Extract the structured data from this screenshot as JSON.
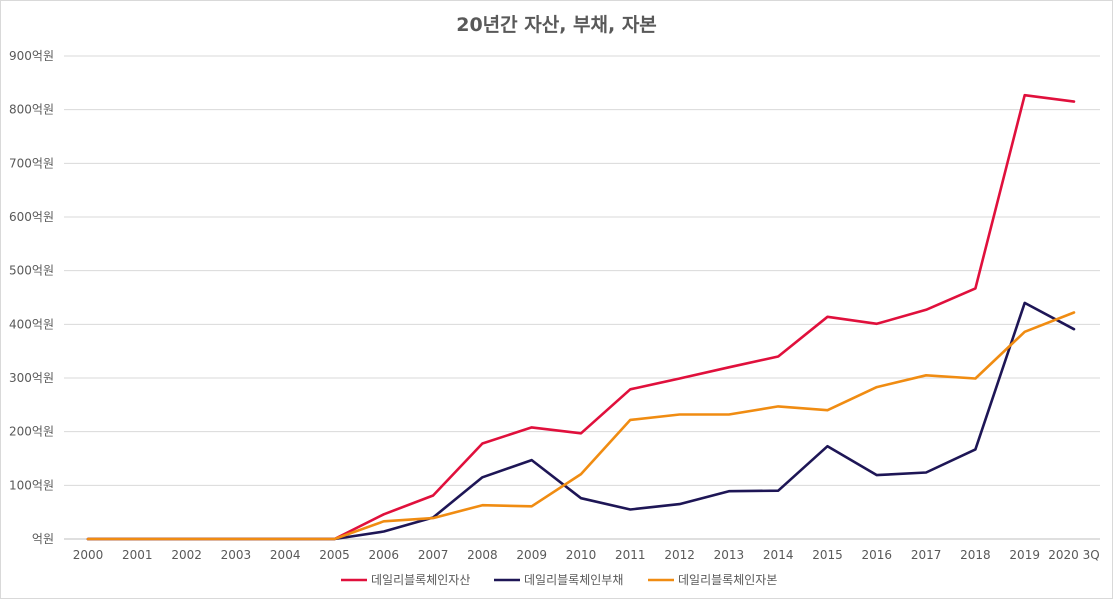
{
  "chart_data": {
    "type": "line",
    "title": "20년간 자산, 부채, 자본",
    "xlabel": "",
    "ylabel": "",
    "categories": [
      "2000",
      "2001",
      "2002",
      "2003",
      "2004",
      "2005",
      "2006",
      "2007",
      "2008",
      "2009",
      "2010",
      "2011",
      "2012",
      "2013",
      "2014",
      "2015",
      "2016",
      "2017",
      "2018",
      "2019",
      "2020 3Q"
    ],
    "y_tick_labels": [
      "억원",
      "100억원",
      "200억원",
      "300억원",
      "400억원",
      "500억원",
      "600억원",
      "700억원",
      "800억원",
      "900억원"
    ],
    "ylim": [
      0,
      900
    ],
    "grid": true,
    "legend_position": "bottom",
    "series": [
      {
        "name": "데일리블록체인자산",
        "color": "#e0103c",
        "values": [
          0,
          0,
          0,
          0,
          0,
          0,
          46,
          81,
          178,
          208,
          197,
          279,
          299,
          320,
          340,
          414,
          401,
          427,
          467,
          827,
          815
        ]
      },
      {
        "name": "데일리블록체인부채",
        "color": "#1e1656",
        "values": [
          0,
          0,
          0,
          0,
          0,
          0,
          14,
          40,
          115,
          147,
          76,
          55,
          65,
          89,
          90,
          173,
          119,
          124,
          167,
          440,
          391
        ]
      },
      {
        "name": "데일리블록체인자본",
        "color": "#f08c12",
        "values": [
          0,
          0,
          0,
          0,
          0,
          0,
          33,
          39,
          63,
          61,
          121,
          222,
          232,
          232,
          247,
          240,
          283,
          305,
          299,
          386,
          422
        ]
      }
    ]
  }
}
